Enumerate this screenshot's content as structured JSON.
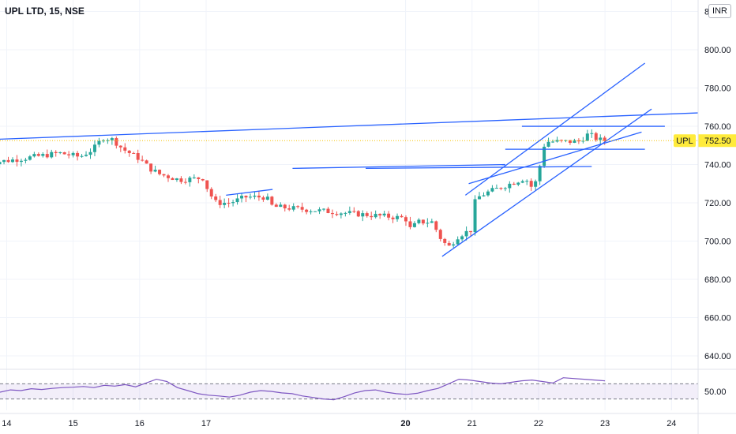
{
  "header": {
    "title": "UPL LTD, 15, NSE",
    "currency": "INR"
  },
  "chart_data": {
    "type": "candlestick",
    "symbol_label": "UPL",
    "last_price": 752.5,
    "last_price_label": "752.50",
    "ylim": [
      633,
      826
    ],
    "y_ticks": [
      640,
      660,
      680,
      700,
      720,
      740,
      760,
      780,
      800,
      820
    ],
    "y_tick_labels": [
      "640.00",
      "660.00",
      "680.00",
      "700.00",
      "720.00",
      "740.00",
      "760.00",
      "780.00",
      "800.00",
      "820.00"
    ],
    "x_ticks": [
      "14",
      "15",
      "16",
      "17",
      "20",
      "21",
      "22",
      "23",
      "24"
    ],
    "x_tick_bold": [
      false,
      false,
      false,
      false,
      true,
      false,
      false,
      false,
      false
    ],
    "xlim": [
      13.9,
      24.4
    ],
    "grid": true,
    "colors": {
      "up": "#26a69a",
      "down": "#ef5350",
      "trendline": "#2962ff",
      "rsi": "#7e57c2",
      "price_tag": "#ffeb3b"
    },
    "close_path": [
      [
        13.7,
        741
      ],
      [
        14.0,
        742
      ],
      [
        14.4,
        744
      ],
      [
        14.8,
        746
      ],
      [
        15.1,
        744
      ],
      [
        15.3,
        748
      ],
      [
        15.45,
        754
      ],
      [
        15.6,
        753
      ],
      [
        15.75,
        748
      ],
      [
        15.9,
        745
      ],
      [
        16.0,
        743
      ],
      [
        16.15,
        738
      ],
      [
        16.3,
        735
      ],
      [
        16.6,
        732
      ],
      [
        16.95,
        733
      ],
      [
        17.05,
        725
      ],
      [
        17.15,
        720
      ],
      [
        17.35,
        720
      ],
      [
        17.6,
        723
      ],
      [
        17.9,
        723
      ],
      [
        18.0,
        718
      ],
      [
        20.0,
        712
      ],
      [
        20.05,
        706
      ],
      [
        20.2,
        710
      ],
      [
        20.4,
        710
      ],
      [
        20.55,
        700
      ],
      [
        20.65,
        697
      ],
      [
        20.8,
        703
      ],
      [
        21.0,
        706
      ],
      [
        21.05,
        722
      ],
      [
        21.2,
        725
      ],
      [
        21.5,
        729
      ],
      [
        21.8,
        733
      ],
      [
        21.9,
        728
      ],
      [
        22.0,
        733
      ],
      [
        22.05,
        749
      ],
      [
        22.15,
        752
      ],
      [
        22.4,
        752
      ],
      [
        22.6,
        752
      ],
      [
        22.75,
        756
      ],
      [
        22.9,
        753
      ],
      [
        23.0,
        752.5
      ]
    ],
    "trendlines": [
      [
        [
          13.7,
          753
        ],
        [
          24.4,
          767
        ]
      ],
      [
        [
          17.3,
          724
        ],
        [
          18.0,
          727
        ]
      ],
      [
        [
          18.3,
          738
        ],
        [
          21.5,
          740
        ]
      ],
      [
        [
          19.4,
          738
        ],
        [
          22.8,
          739
        ]
      ],
      [
        [
          20.55,
          692
        ],
        [
          23.7,
          769
        ]
      ],
      [
        [
          20.9,
          724
        ],
        [
          23.6,
          793
        ]
      ],
      [
        [
          21.5,
          748
        ],
        [
          23.6,
          748
        ]
      ],
      [
        [
          21.75,
          760
        ],
        [
          23.9,
          760
        ]
      ],
      [
        [
          20.95,
          730
        ],
        [
          23.55,
          757
        ]
      ]
    ],
    "rsi": {
      "level_label": "50.00",
      "bands": [
        70,
        30
      ],
      "values": [
        48,
        54,
        52,
        57,
        55,
        58,
        60,
        61,
        63,
        60,
        66,
        64,
        68,
        62,
        72,
        82,
        76,
        60,
        52,
        44,
        40,
        38,
        35,
        40,
        48,
        52,
        50,
        46,
        44,
        38,
        34,
        30,
        28,
        36,
        46,
        52,
        54,
        48,
        44,
        42,
        45,
        52,
        58,
        70,
        82,
        80,
        76,
        72,
        70,
        74,
        78,
        80,
        76,
        72,
        86,
        84,
        82,
        80,
        78
      ]
    }
  }
}
